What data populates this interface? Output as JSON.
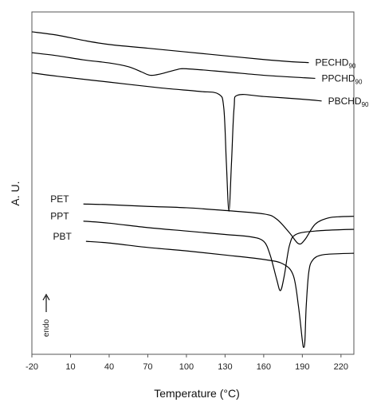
{
  "chart_data": {
    "type": "line",
    "xlabel": "Temperature (°C)",
    "ylabel": "A. U.",
    "annotation": "endo",
    "annotation_arrow": "up",
    "xlim": [
      -20,
      230
    ],
    "x_ticks": [
      -20,
      10,
      40,
      70,
      100,
      130,
      160,
      190,
      220
    ],
    "ylim": [
      0,
      1
    ],
    "grid": false,
    "series": [
      {
        "name": "PECHD",
        "name_sub": "90",
        "x": [
          -20,
          0,
          20,
          40,
          70,
          100,
          130,
          160,
          180,
          195
        ],
        "y": [
          0.942,
          0.932,
          0.917,
          0.905,
          0.894,
          0.883,
          0.872,
          0.861,
          0.855,
          0.852
        ]
      },
      {
        "name": "PPCHD",
        "name_sub": "90",
        "x": [
          -20,
          0,
          20,
          40,
          55,
          65,
          72,
          80,
          92,
          100,
          130,
          160,
          190,
          200
        ],
        "y": [
          0.881,
          0.872,
          0.86,
          0.851,
          0.84,
          0.825,
          0.815,
          0.819,
          0.831,
          0.834,
          0.825,
          0.815,
          0.808,
          0.806
        ]
      },
      {
        "name": "PBCHD",
        "name_sub": "90",
        "x": [
          -20,
          0,
          40,
          80,
          110,
          125,
          129,
          131,
          133,
          135,
          137,
          140,
          160,
          190,
          205
        ],
        "y": [
          0.822,
          0.812,
          0.795,
          0.778,
          0.768,
          0.76,
          0.72,
          0.56,
          0.418,
          0.56,
          0.72,
          0.757,
          0.753,
          0.745,
          0.74
        ]
      },
      {
        "name": "PET",
        "name_sub": "",
        "x": [
          20,
          40,
          70,
          100,
          130,
          160,
          170,
          180,
          187,
          192,
          200,
          210,
          220,
          230
        ],
        "y": [
          0.439,
          0.437,
          0.432,
          0.428,
          0.42,
          0.41,
          0.395,
          0.355,
          0.323,
          0.335,
          0.38,
          0.398,
          0.402,
          0.403
        ]
      },
      {
        "name": "PPT",
        "name_sub": "",
        "x": [
          20,
          40,
          70,
          100,
          130,
          150,
          160,
          165,
          170,
          173,
          176,
          180,
          185,
          200,
          220,
          230
        ],
        "y": [
          0.389,
          0.383,
          0.37,
          0.36,
          0.35,
          0.343,
          0.33,
          0.29,
          0.22,
          0.186,
          0.23,
          0.318,
          0.35,
          0.36,
          0.364,
          0.365
        ]
      },
      {
        "name": "PBT",
        "name_sub": "",
        "x": [
          22,
          40,
          70,
          100,
          130,
          160,
          175,
          183,
          187,
          190,
          191,
          192,
          193,
          195,
          198,
          205,
          220,
          230
        ],
        "y": [
          0.33,
          0.325,
          0.312,
          0.302,
          0.29,
          0.277,
          0.264,
          0.23,
          0.14,
          0.04,
          0.02,
          0.04,
          0.14,
          0.24,
          0.275,
          0.29,
          0.294,
          0.295
        ]
      }
    ]
  }
}
